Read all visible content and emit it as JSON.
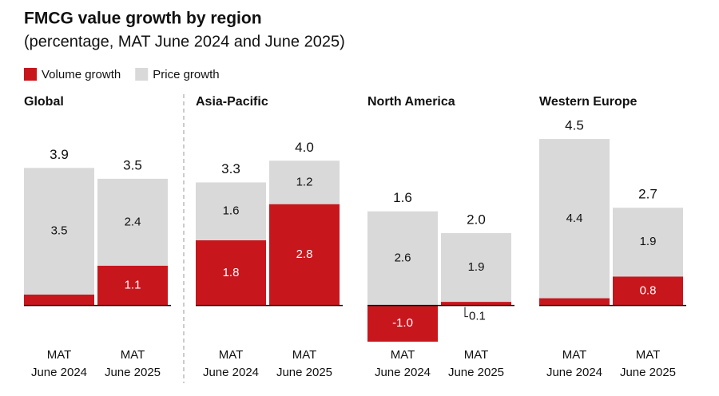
{
  "title": "FMCG value growth by region",
  "subtitle": "(percentage, MAT June 2024 and June 2025)",
  "legend": [
    {
      "name": "Volume growth",
      "color": "#c8161d"
    },
    {
      "name": "Price growth",
      "color": "#d9d9d9"
    }
  ],
  "chart_data": [
    {
      "type": "stacked-bar",
      "title": "Global",
      "categories": [
        [
          "MAT",
          "June 2024"
        ],
        [
          "MAT",
          "June 2025"
        ]
      ],
      "series": [
        {
          "values": [
            0.3,
            1.1
          ]
        },
        {
          "values": [
            3.5,
            2.4
          ]
        }
      ],
      "totals": {
        "values": [
          3.9,
          3.5
        ]
      },
      "ylim": [
        -1.2,
        4.8
      ]
    },
    {
      "type": "stacked-bar",
      "title": "Asia-Pacific",
      "categories": [
        [
          "MAT",
          "June 2024"
        ],
        [
          "MAT",
          "June 2025"
        ]
      ],
      "series": [
        {
          "values": [
            1.8,
            2.8
          ]
        },
        {
          "values": [
            1.6,
            1.2
          ]
        }
      ],
      "totals": {
        "values": [
          3.3,
          4.0
        ],
        "value_labels": [
          "3.3",
          "4.0"
        ]
      },
      "ylim": [
        -1.2,
        4.8
      ]
    },
    {
      "type": "stacked-bar",
      "title": "North America",
      "categories": [
        [
          "MAT",
          "June 2024"
        ],
        [
          "MAT",
          "June 2025"
        ]
      ],
      "series": [
        {
          "values": [
            -1.0,
            0.1
          ],
          "value_labels": [
            "-1.0",
            "0.1"
          ]
        },
        {
          "values": [
            2.6,
            1.9
          ]
        }
      ],
      "totals": {
        "values": [
          1.6,
          2.0
        ],
        "value_labels": [
          "1.6",
          "2.0"
        ]
      },
      "ylim": [
        -1.2,
        4.8
      ]
    },
    {
      "type": "stacked-bar",
      "title": "Western Europe",
      "categories": [
        [
          "MAT",
          "June 2024"
        ],
        [
          "MAT",
          "June 2025"
        ]
      ],
      "series": [
        {
          "values": [
            0.2,
            0.8
          ]
        },
        {
          "values": [
            4.4,
            1.9
          ]
        }
      ],
      "totals": {
        "values": [
          4.5,
          2.7
        ]
      },
      "ylim": [
        -1.2,
        4.8
      ]
    }
  ]
}
